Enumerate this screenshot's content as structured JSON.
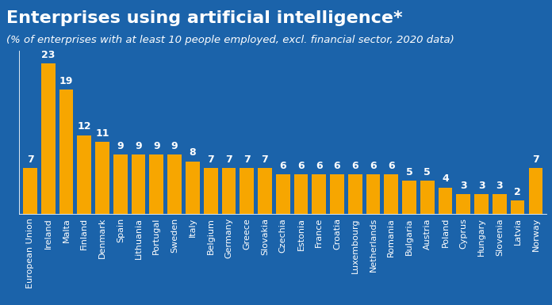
{
  "chart_data": {
    "type": "bar",
    "title": "Enterprises using artificial intelligence*",
    "subtitle": "(% of enterprises with at least 10 people employed, excl. financial sector, 2020 data)",
    "categories": [
      "European Union",
      "Ireland",
      "Malta",
      "Finland",
      "Denmark",
      "Spain",
      "Lithuania",
      "Portugal",
      "Sweden",
      "Italy",
      "Belgium",
      "Germany",
      "Greece",
      "Slovakia",
      "Czechia",
      "Estonia",
      "France",
      "Croatia",
      "Luxembourg",
      "Netherlands",
      "Romania",
      "Bulgaria",
      "Austria",
      "Poland",
      "Cyprus",
      "Hungary",
      "Slovenia",
      "Latvia",
      "Norway"
    ],
    "values": [
      7,
      23,
      19,
      12,
      11,
      9,
      9,
      9,
      9,
      8,
      7,
      7,
      7,
      7,
      6,
      6,
      6,
      6,
      6,
      6,
      6,
      5,
      5,
      4,
      3,
      3,
      3,
      2,
      7
    ],
    "color": "#f7a600",
    "ylim": [
      0,
      25
    ],
    "data_labels": true,
    "tick_labels": "x",
    "grid": false
  }
}
